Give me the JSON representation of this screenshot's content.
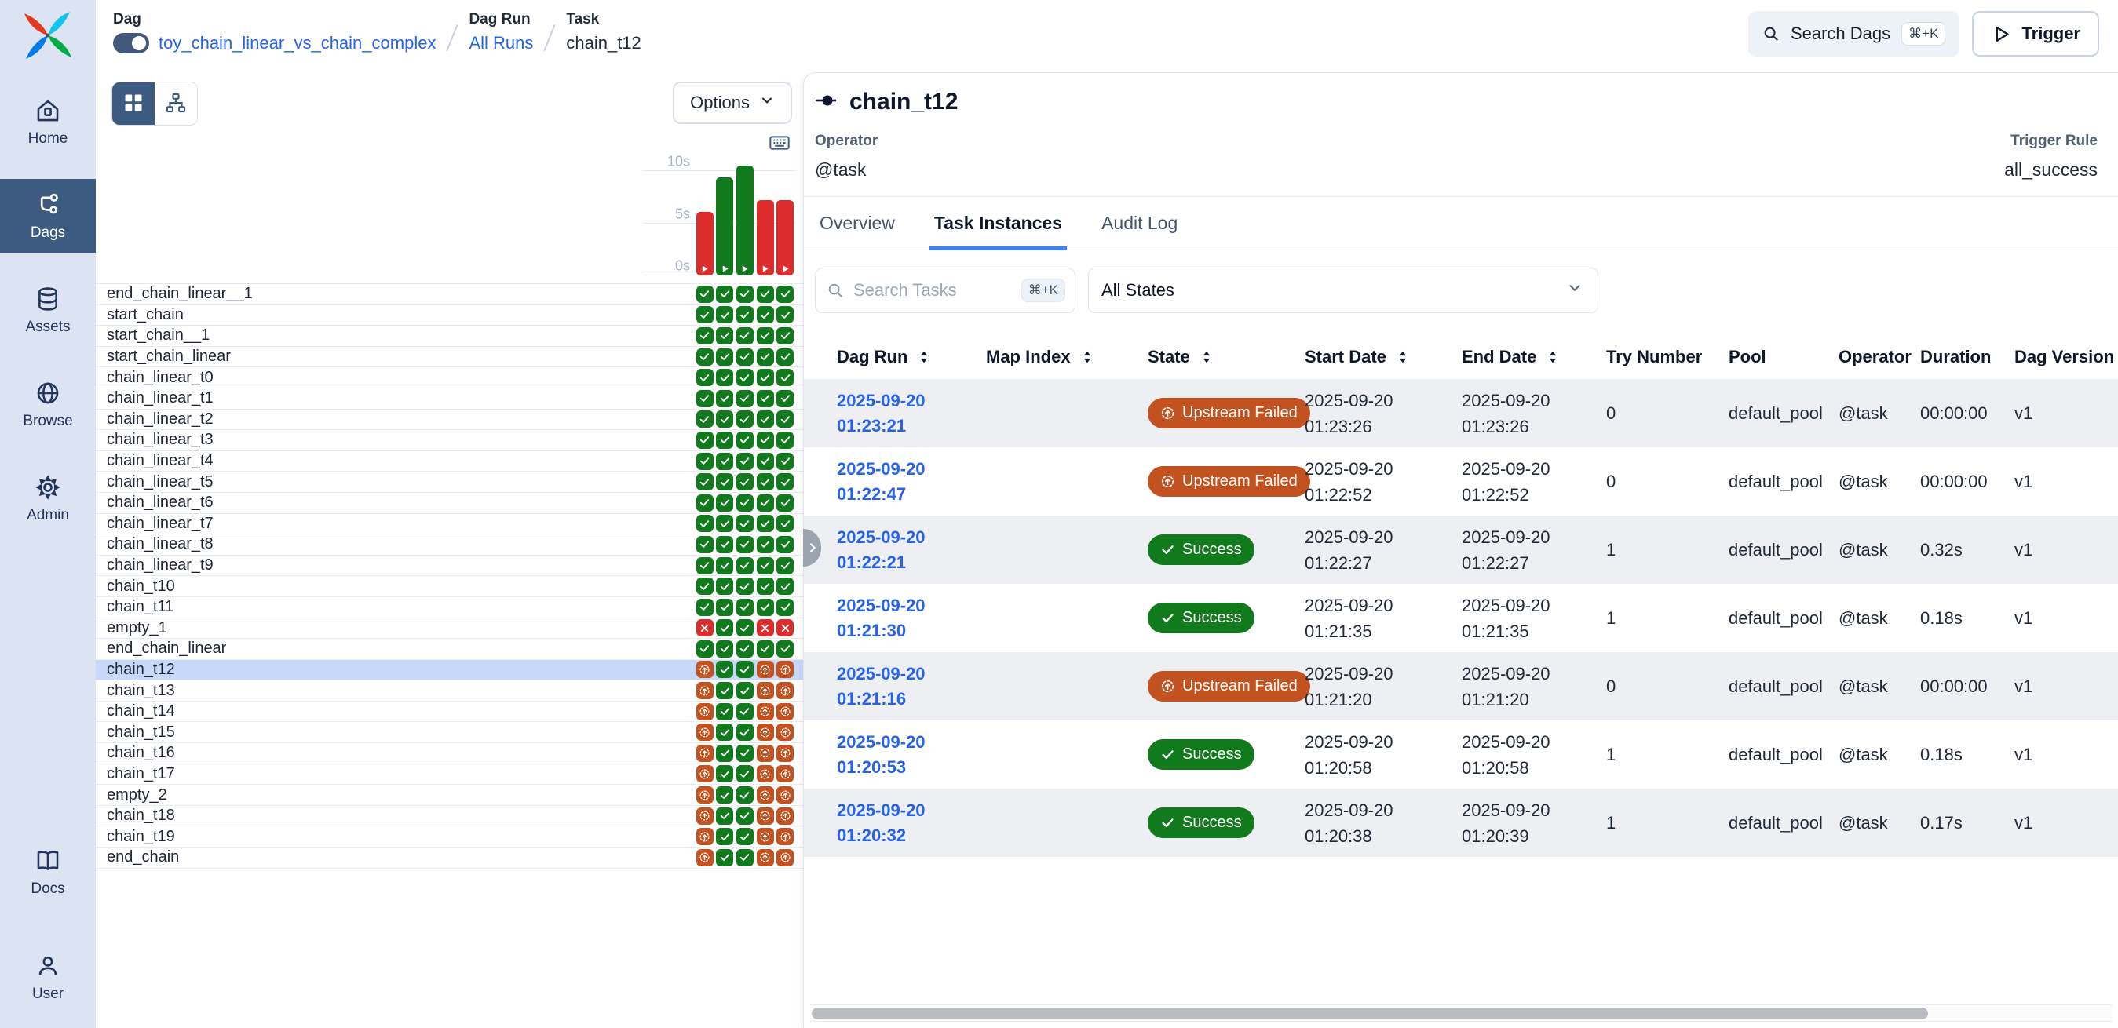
{
  "brand": {
    "logo_name": "airflow-pinwheel-logo"
  },
  "sidebar": {
    "items": [
      {
        "id": "home",
        "label": "Home",
        "icon": "home-icon",
        "active": false
      },
      {
        "id": "dags",
        "label": "Dags",
        "icon": "dags-icon",
        "active": true
      },
      {
        "id": "assets",
        "label": "Assets",
        "icon": "assets-icon",
        "active": false
      },
      {
        "id": "browse",
        "label": "Browse",
        "icon": "browse-icon",
        "active": false
      },
      {
        "id": "admin",
        "label": "Admin",
        "icon": "admin-icon",
        "active": false
      }
    ],
    "footer_items": [
      {
        "id": "docs",
        "label": "Docs",
        "icon": "docs-icon",
        "active": false
      },
      {
        "id": "user",
        "label": "User",
        "icon": "user-icon",
        "active": false
      }
    ]
  },
  "breadcrumb": {
    "dag_label": "Dag",
    "dag_name": "toy_chain_linear_vs_chain_complex",
    "dag_run_label": "Dag Run",
    "dag_run_value": "All Runs",
    "task_label": "Task",
    "task_value": "chain_t12"
  },
  "topbar": {
    "search_label": "Search Dags",
    "search_kbd": "⌘+K",
    "trigger_label": "Trigger"
  },
  "grid_panel": {
    "options_label": "Options",
    "axis_labels": [
      "10s",
      "5s",
      "0s"
    ],
    "axis_max_s": 10,
    "runs": [
      {
        "state": "failed",
        "duration_s": 6.1
      },
      {
        "state": "success",
        "duration_s": 9.4
      },
      {
        "state": "success",
        "duration_s": 10.5
      },
      {
        "state": "failed",
        "duration_s": 7.2
      },
      {
        "state": "failed",
        "duration_s": 7.2
      }
    ],
    "tasks": [
      {
        "name": "end_chain_linear__1",
        "selected": false,
        "states": [
          "success",
          "success",
          "success",
          "success",
          "success"
        ]
      },
      {
        "name": "start_chain",
        "selected": false,
        "states": [
          "success",
          "success",
          "success",
          "success",
          "success"
        ]
      },
      {
        "name": "start_chain__1",
        "selected": false,
        "states": [
          "success",
          "success",
          "success",
          "success",
          "success"
        ]
      },
      {
        "name": "start_chain_linear",
        "selected": false,
        "states": [
          "success",
          "success",
          "success",
          "success",
          "success"
        ]
      },
      {
        "name": "chain_linear_t0",
        "selected": false,
        "states": [
          "success",
          "success",
          "success",
          "success",
          "success"
        ]
      },
      {
        "name": "chain_linear_t1",
        "selected": false,
        "states": [
          "success",
          "success",
          "success",
          "success",
          "success"
        ]
      },
      {
        "name": "chain_linear_t2",
        "selected": false,
        "states": [
          "success",
          "success",
          "success",
          "success",
          "success"
        ]
      },
      {
        "name": "chain_linear_t3",
        "selected": false,
        "states": [
          "success",
          "success",
          "success",
          "success",
          "success"
        ]
      },
      {
        "name": "chain_linear_t4",
        "selected": false,
        "states": [
          "success",
          "success",
          "success",
          "success",
          "success"
        ]
      },
      {
        "name": "chain_linear_t5",
        "selected": false,
        "states": [
          "success",
          "success",
          "success",
          "success",
          "success"
        ]
      },
      {
        "name": "chain_linear_t6",
        "selected": false,
        "states": [
          "success",
          "success",
          "success",
          "success",
          "success"
        ]
      },
      {
        "name": "chain_linear_t7",
        "selected": false,
        "states": [
          "success",
          "success",
          "success",
          "success",
          "success"
        ]
      },
      {
        "name": "chain_linear_t8",
        "selected": false,
        "states": [
          "success",
          "success",
          "success",
          "success",
          "success"
        ]
      },
      {
        "name": "chain_linear_t9",
        "selected": false,
        "states": [
          "success",
          "success",
          "success",
          "success",
          "success"
        ]
      },
      {
        "name": "chain_t10",
        "selected": false,
        "states": [
          "success",
          "success",
          "success",
          "success",
          "success"
        ]
      },
      {
        "name": "chain_t11",
        "selected": false,
        "states": [
          "success",
          "success",
          "success",
          "success",
          "success"
        ]
      },
      {
        "name": "empty_1",
        "selected": false,
        "states": [
          "failed",
          "success",
          "success",
          "failed",
          "failed"
        ]
      },
      {
        "name": "end_chain_linear",
        "selected": false,
        "states": [
          "success",
          "success",
          "success",
          "success",
          "success"
        ]
      },
      {
        "name": "chain_t12",
        "selected": true,
        "states": [
          "upstream_failed",
          "success",
          "success",
          "upstream_failed",
          "upstream_failed"
        ]
      },
      {
        "name": "chain_t13",
        "selected": false,
        "states": [
          "upstream_failed",
          "success",
          "success",
          "upstream_failed",
          "upstream_failed"
        ]
      },
      {
        "name": "chain_t14",
        "selected": false,
        "states": [
          "upstream_failed",
          "success",
          "success",
          "upstream_failed",
          "upstream_failed"
        ]
      },
      {
        "name": "chain_t15",
        "selected": false,
        "states": [
          "upstream_failed",
          "success",
          "success",
          "upstream_failed",
          "upstream_failed"
        ]
      },
      {
        "name": "chain_t16",
        "selected": false,
        "states": [
          "upstream_failed",
          "success",
          "success",
          "upstream_failed",
          "upstream_failed"
        ]
      },
      {
        "name": "chain_t17",
        "selected": false,
        "states": [
          "upstream_failed",
          "success",
          "success",
          "upstream_failed",
          "upstream_failed"
        ]
      },
      {
        "name": "empty_2",
        "selected": false,
        "states": [
          "upstream_failed",
          "success",
          "success",
          "upstream_failed",
          "upstream_failed"
        ]
      },
      {
        "name": "chain_t18",
        "selected": false,
        "states": [
          "upstream_failed",
          "success",
          "success",
          "upstream_failed",
          "upstream_failed"
        ]
      },
      {
        "name": "chain_t19",
        "selected": false,
        "states": [
          "upstream_failed",
          "success",
          "success",
          "upstream_failed",
          "upstream_failed"
        ]
      },
      {
        "name": "end_chain",
        "selected": false,
        "states": [
          "upstream_failed",
          "success",
          "success",
          "upstream_failed",
          "upstream_failed"
        ]
      }
    ]
  },
  "details": {
    "title": "chain_t12",
    "operator_label": "Operator",
    "operator_value": "@task",
    "trigger_rule_label": "Trigger Rule",
    "trigger_rule_value": "all_success",
    "tabs": [
      {
        "id": "overview",
        "label": "Overview"
      },
      {
        "id": "task-instances",
        "label": "Task Instances"
      },
      {
        "id": "audit-log",
        "label": "Audit Log"
      }
    ],
    "active_tab": 1,
    "search_placeholder": "Search Tasks",
    "search_kbd": "⌘+K",
    "state_filter": "All States",
    "table": {
      "columns": [
        {
          "id": "dag-run",
          "label": "Dag Run",
          "sortable": true
        },
        {
          "id": "map-index",
          "label": "Map Index",
          "sortable": true
        },
        {
          "id": "state",
          "label": "State",
          "sortable": true
        },
        {
          "id": "start-date",
          "label": "Start Date",
          "sortable": true
        },
        {
          "id": "end-date",
          "label": "End Date",
          "sortable": true
        },
        {
          "id": "try-number",
          "label": "Try Number",
          "sortable": false
        },
        {
          "id": "pool",
          "label": "Pool",
          "sortable": false
        },
        {
          "id": "operator",
          "label": "Operator",
          "sortable": false
        },
        {
          "id": "duration",
          "label": "Duration",
          "sortable": false
        },
        {
          "id": "dag-version",
          "label": "Dag Version",
          "sortable": false
        }
      ],
      "rows": [
        {
          "dag_run": "2025-09-20 01:23:21",
          "map_index": "",
          "state": "Upstream Failed",
          "state_key": "upstream_failed",
          "start_date": "2025-09-20 01:23:26",
          "end_date": "2025-09-20 01:23:26",
          "try_number": "0",
          "pool": "default_pool",
          "operator": "@task",
          "duration": "00:00:00",
          "dag_version": "v1"
        },
        {
          "dag_run": "2025-09-20 01:22:47",
          "map_index": "",
          "state": "Upstream Failed",
          "state_key": "upstream_failed",
          "start_date": "2025-09-20 01:22:52",
          "end_date": "2025-09-20 01:22:52",
          "try_number": "0",
          "pool": "default_pool",
          "operator": "@task",
          "duration": "00:00:00",
          "dag_version": "v1"
        },
        {
          "dag_run": "2025-09-20 01:22:21",
          "map_index": "",
          "state": "Success",
          "state_key": "success",
          "start_date": "2025-09-20 01:22:27",
          "end_date": "2025-09-20 01:22:27",
          "try_number": "1",
          "pool": "default_pool",
          "operator": "@task",
          "duration": "0.32s",
          "dag_version": "v1"
        },
        {
          "dag_run": "2025-09-20 01:21:30",
          "map_index": "",
          "state": "Success",
          "state_key": "success",
          "start_date": "2025-09-20 01:21:35",
          "end_date": "2025-09-20 01:21:35",
          "try_number": "1",
          "pool": "default_pool",
          "operator": "@task",
          "duration": "0.18s",
          "dag_version": "v1"
        },
        {
          "dag_run": "2025-09-20 01:21:16",
          "map_index": "",
          "state": "Upstream Failed",
          "state_key": "upstream_failed",
          "start_date": "2025-09-20 01:21:20",
          "end_date": "2025-09-20 01:21:20",
          "try_number": "0",
          "pool": "default_pool",
          "operator": "@task",
          "duration": "00:00:00",
          "dag_version": "v1"
        },
        {
          "dag_run": "2025-09-20 01:20:53",
          "map_index": "",
          "state": "Success",
          "state_key": "success",
          "start_date": "2025-09-20 01:20:58",
          "end_date": "2025-09-20 01:20:58",
          "try_number": "1",
          "pool": "default_pool",
          "operator": "@task",
          "duration": "0.18s",
          "dag_version": "v1"
        },
        {
          "dag_run": "2025-09-20 01:20:32",
          "map_index": "",
          "state": "Success",
          "state_key": "success",
          "start_date": "2025-09-20 01:20:38",
          "end_date": "2025-09-20 01:20:39",
          "try_number": "1",
          "pool": "default_pool",
          "operator": "@task",
          "duration": "0.17s",
          "dag_version": "v1"
        }
      ]
    }
  },
  "colors": {
    "success": "#107a1c",
    "failed": "#dd2c2c",
    "upstream_failed": "#c2521f",
    "accent_link": "#2563eb",
    "tab_underline": "#3b82f6",
    "sidebar_bg": "#dce3f2",
    "active_nav": "#3d5a80",
    "selected_row": "#c7d8f8"
  }
}
